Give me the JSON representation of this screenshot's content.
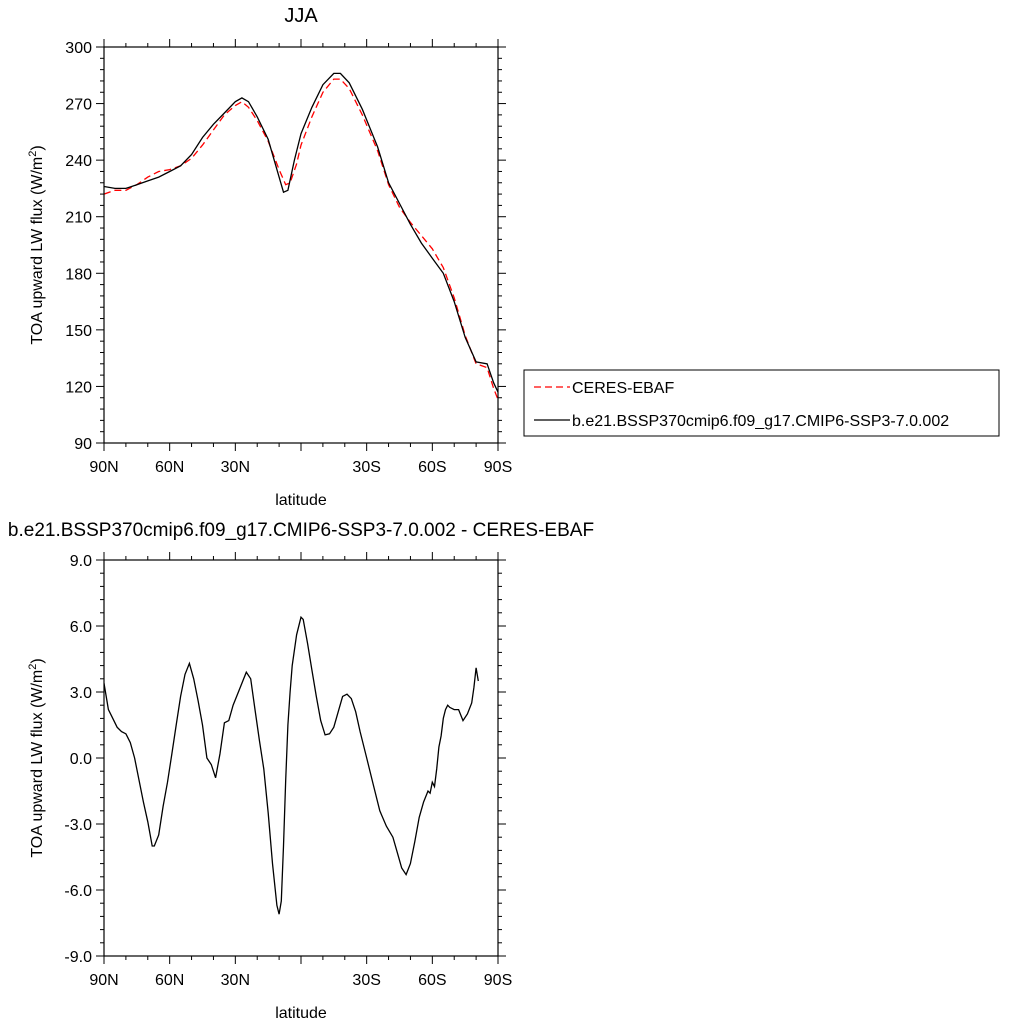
{
  "chart_data": [
    {
      "type": "line",
      "title": "JJA",
      "xlabel": "latitude",
      "ylabel": "TOA upward LW flux (W/m",
      "ylabel_sup": "2",
      "ylabel_end": ")",
      "x_tick_values": [
        90,
        60,
        30,
        0,
        -30,
        -60,
        -90
      ],
      "x_tick_labels": [
        "90N",
        "60N",
        "30N",
        "",
        "30S",
        "60S",
        "90S"
      ],
      "xlim": [
        90,
        -90
      ],
      "ylim": [
        90,
        300
      ],
      "y_tick_values": [
        90,
        120,
        150,
        180,
        210,
        240,
        270,
        300
      ],
      "y_tick_labels": [
        "90",
        "120",
        "150",
        "180",
        "210",
        "240",
        "270",
        "300"
      ],
      "legend": {
        "position": "right",
        "entries": [
          {
            "label": "CERES-EBAF",
            "color": "#ff0000",
            "dash": true
          },
          {
            "label": "b.e21.BSSP370cmip6.f09_g17.CMIP6-SSP3-7.0.002",
            "color": "#000000",
            "dash": false
          }
        ]
      },
      "series": [
        {
          "name": "CERES-EBAF",
          "color": "#ff0000",
          "dash": true,
          "points": [
            [
              90,
              222
            ],
            [
              85,
              224
            ],
            [
              80,
              224
            ],
            [
              75,
              227
            ],
            [
              70,
              231
            ],
            [
              65,
              234
            ],
            [
              60,
              235
            ],
            [
              55,
              237
            ],
            [
              50,
              241
            ],
            [
              45,
              248
            ],
            [
              40,
              256
            ],
            [
              35,
              264
            ],
            [
              30,
              269
            ],
            [
              27,
              271
            ],
            [
              24,
              268
            ],
            [
              20,
              261
            ],
            [
              15,
              250
            ],
            [
              10,
              235
            ],
            [
              7,
              227
            ],
            [
              5,
              228
            ],
            [
              2,
              238
            ],
            [
              0,
              248
            ],
            [
              -5,
              263
            ],
            [
              -10,
              276
            ],
            [
              -15,
              283
            ],
            [
              -18,
              283
            ],
            [
              -22,
              278
            ],
            [
              -28,
              264
            ],
            [
              -35,
              245
            ],
            [
              -40,
              227
            ],
            [
              -45,
              215
            ],
            [
              -50,
              207
            ],
            [
              -55,
              200
            ],
            [
              -60,
              193
            ],
            [
              -65,
              183
            ],
            [
              -70,
              167
            ],
            [
              -75,
              147
            ],
            [
              -80,
              132
            ],
            [
              -85,
              130
            ],
            [
              -88,
              119
            ],
            [
              -90,
              113
            ]
          ]
        },
        {
          "name": "b.e21.BSSP370cmip6.f09_g17.CMIP6-SSP3-7.0.002",
          "color": "#000000",
          "dash": false,
          "points": [
            [
              90,
              226
            ],
            [
              85,
              225
            ],
            [
              80,
              225
            ],
            [
              75,
              227
            ],
            [
              70,
              229
            ],
            [
              65,
              231
            ],
            [
              60,
              234
            ],
            [
              55,
              237
            ],
            [
              50,
              243
            ],
            [
              45,
              252
            ],
            [
              40,
              259
            ],
            [
              35,
              265
            ],
            [
              30,
              271
            ],
            [
              27,
              273
            ],
            [
              24,
              271
            ],
            [
              20,
              263
            ],
            [
              15,
              251
            ],
            [
              10,
              231
            ],
            [
              8,
              223
            ],
            [
              6,
              224
            ],
            [
              3,
              240
            ],
            [
              0,
              254
            ],
            [
              -5,
              268
            ],
            [
              -10,
              280
            ],
            [
              -15,
              286
            ],
            [
              -18,
              286
            ],
            [
              -22,
              281
            ],
            [
              -28,
              267
            ],
            [
              -35,
              247
            ],
            [
              -40,
              228
            ],
            [
              -45,
              217
            ],
            [
              -50,
              206
            ],
            [
              -55,
              196
            ],
            [
              -60,
              188
            ],
            [
              -65,
              180
            ],
            [
              -70,
              165
            ],
            [
              -75,
              146
            ],
            [
              -80,
              133
            ],
            [
              -85,
              132
            ],
            [
              -88,
              122
            ],
            [
              -90,
              117
            ]
          ]
        }
      ]
    },
    {
      "type": "line",
      "title": "b.e21.BSSP370cmip6.f09_g17.CMIP6-SSP3-7.0.002 - CERES-EBAF",
      "xlabel": "latitude",
      "ylabel": "TOA upward LW flux (W/m",
      "ylabel_sup": "2",
      "ylabel_end": ")",
      "x_tick_values": [
        90,
        60,
        30,
        0,
        -30,
        -60,
        -90
      ],
      "x_tick_labels": [
        "90N",
        "60N",
        "30N",
        "",
        "30S",
        "60S",
        "90S"
      ],
      "xlim": [
        90,
        -90
      ],
      "ylim": [
        -9,
        9
      ],
      "y_tick_values": [
        -9,
        -6,
        -3,
        0,
        3,
        6,
        9
      ],
      "y_tick_labels": [
        "-9.0",
        "-6.0",
        "-3.0",
        "0.0",
        "3.0",
        "6.0",
        "9.0"
      ],
      "series": [
        {
          "name": "",
          "color": "#000000",
          "dash": false,
          "points": [
            [
              90,
              3.4
            ],
            [
              89,
              2.8
            ],
            [
              88,
              2.2
            ],
            [
              86,
              1.8
            ],
            [
              84,
              1.4
            ],
            [
              82,
              1.2
            ],
            [
              80,
              1.1
            ],
            [
              78,
              0.7
            ],
            [
              76,
              0
            ],
            [
              74,
              -1
            ],
            [
              72,
              -2
            ],
            [
              70,
              -2.9
            ],
            [
              68,
              -4
            ],
            [
              67,
              -4.0
            ],
            [
              65,
              -3.5
            ],
            [
              63,
              -2.2
            ],
            [
              61,
              -1.1
            ],
            [
              59,
              0.2
            ],
            [
              57,
              1.5
            ],
            [
              55,
              2.8
            ],
            [
              53,
              3.8
            ],
            [
              51,
              4.3
            ],
            [
              49,
              3.6
            ],
            [
              47,
              2.6
            ],
            [
              45,
              1.5
            ],
            [
              43,
              0
            ],
            [
              41,
              -0.3
            ],
            [
              39,
              -0.9
            ],
            [
              37,
              0.2
            ],
            [
              35,
              1.6
            ],
            [
              33,
              1.7
            ],
            [
              31,
              2.4
            ],
            [
              29,
              2.9
            ],
            [
              27,
              3.4
            ],
            [
              25,
              3.9
            ],
            [
              23,
              3.6
            ],
            [
              21,
              2.2
            ],
            [
              19,
              0.8
            ],
            [
              17,
              -0.5
            ],
            [
              15,
              -2.5
            ],
            [
              13,
              -4.8
            ],
            [
              11,
              -6.7
            ],
            [
              10,
              -7.1
            ],
            [
              9,
              -6.5
            ],
            [
              8,
              -4
            ],
            [
              7,
              -1
            ],
            [
              6,
              1.5
            ],
            [
              5,
              3
            ],
            [
              4,
              4.2
            ],
            [
              2,
              5.6
            ],
            [
              0,
              6.4
            ],
            [
              -1,
              6.3
            ],
            [
              -3,
              5.2
            ],
            [
              -5,
              4
            ],
            [
              -7,
              2.8
            ],
            [
              -9,
              1.7
            ],
            [
              -11,
              1.05
            ],
            [
              -13,
              1.1
            ],
            [
              -15,
              1.4
            ],
            [
              -17,
              2.1
            ],
            [
              -19,
              2.8
            ],
            [
              -21,
              2.9
            ],
            [
              -23,
              2.7
            ],
            [
              -25,
              2.1
            ],
            [
              -27,
              1.2
            ],
            [
              -30,
              0
            ],
            [
              -33,
              -1.2
            ],
            [
              -36,
              -2.4
            ],
            [
              -39,
              -3.1
            ],
            [
              -42,
              -3.6
            ],
            [
              -44,
              -4.3
            ],
            [
              -46,
              -5.0
            ],
            [
              -48,
              -5.3
            ],
            [
              -50,
              -4.8
            ],
            [
              -52,
              -3.8
            ],
            [
              -54,
              -2.7
            ],
            [
              -56,
              -2.0
            ],
            [
              -58,
              -1.5
            ],
            [
              -59,
              -1.6
            ],
            [
              -60,
              -1.1
            ],
            [
              -61,
              -1.3
            ],
            [
              -62,
              -0.5
            ],
            [
              -63,
              0.5
            ],
            [
              -64,
              1
            ],
            [
              -65,
              1.8
            ],
            [
              -66,
              2.2
            ],
            [
              -67,
              2.4
            ],
            [
              -68,
              2.3
            ],
            [
              -70,
              2.2
            ],
            [
              -72,
              2.2
            ],
            [
              -74,
              1.7
            ],
            [
              -76,
              2
            ],
            [
              -78,
              2.5
            ],
            [
              -79,
              3.2
            ],
            [
              -80,
              4.1
            ],
            [
              -81,
              3.5
            ]
          ]
        }
      ]
    }
  ]
}
